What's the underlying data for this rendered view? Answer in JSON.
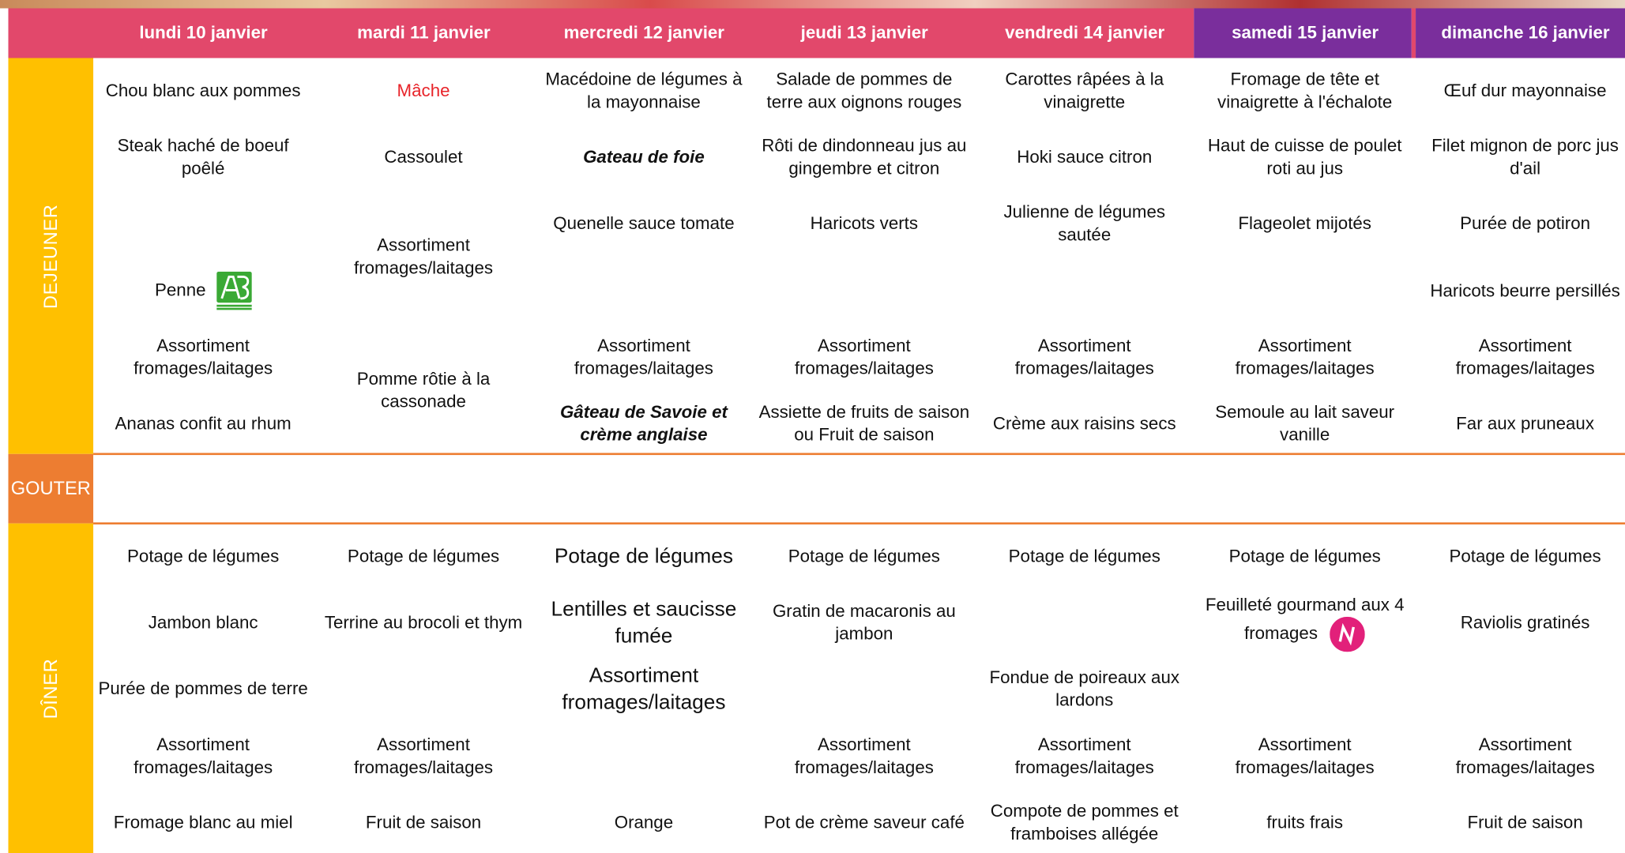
{
  "sections": {
    "dejeuner": "DEJEUNER",
    "gouter": "GOUTER",
    "diner": "DÎNER"
  },
  "days": [
    {
      "name": "lundi 10 janvier",
      "dejeuner": [
        "Chou blanc aux pommes",
        "Steak haché de boeuf poêlé",
        null,
        "Penne",
        "Assortiment fromages/laitages",
        "Ananas confit au rhum"
      ],
      "diner": [
        "Potage de légumes",
        "Jambon blanc",
        "Purée de pommes de terre",
        "Assortiment fromages/laitages",
        "Fromage blanc au miel"
      ]
    },
    {
      "name": "mardi 11 janvier",
      "dejeuner": [
        "Mâche",
        "Cassoulet",
        "Assortiment fromages/laitages",
        null,
        "Pomme rôtie à la cassonade",
        null
      ],
      "diner": [
        "Potage de légumes",
        "Terrine au brocoli et thym",
        null,
        "Assortiment fromages/laitages",
        "Fruit de saison"
      ]
    },
    {
      "name": "mercredi 12 janvier",
      "dejeuner": [
        "Macédoine de légumes à la mayonnaise",
        "Gateau de foie",
        "Quenelle sauce tomate",
        null,
        "Assortiment fromages/laitages",
        "Gâteau de Savoie et crème anglaise"
      ],
      "diner": [
        "Potage de légumes",
        "Lentilles et saucisse fumée",
        "Assortiment fromages/laitages",
        null,
        "Orange"
      ]
    },
    {
      "name": "jeudi 13 janvier",
      "dejeuner": [
        "Salade de pommes de terre aux oignons rouges",
        "Rôti de dindonneau jus au gingembre et citron",
        "Haricots verts",
        null,
        "Assortiment fromages/laitages",
        "Assiette de fruits de saison ou Fruit de saison"
      ],
      "diner": [
        "Potage de légumes",
        "Gratin de macaronis au jambon",
        null,
        "Assortiment fromages/laitages",
        "Pot de crème saveur café"
      ]
    },
    {
      "name": "vendredi 14 janvier",
      "dejeuner": [
        "Carottes râpées à la vinaigrette",
        "Hoki sauce citron",
        "Julienne de légumes sautée",
        null,
        "Assortiment fromages/laitages",
        "Crème aux raisins secs"
      ],
      "diner": [
        "Potage de légumes",
        null,
        "Fondue de poireaux aux lardons",
        "Assortiment fromages/laitages",
        "Compote de pommes et framboises allégée"
      ]
    },
    {
      "name": "samedi 15 janvier",
      "dejeuner": [
        "Fromage de tête et vinaigrette à l'échalote",
        "Haut de cuisse de poulet roti au jus",
        "Flageolet mijotés",
        null,
        "Assortiment fromages/laitages",
        "Semoule au lait saveur vanille"
      ],
      "diner": [
        "Potage de légumes",
        "Feuilleté gourmand aux 4 fromages",
        null,
        "Assortiment fromages/laitages",
        "fruits frais"
      ]
    },
    {
      "name": "dimanche 16 janvier",
      "dejeuner": [
        "Œuf dur mayonnaise",
        "Filet mignon de porc jus d'ail",
        "Purée de potiron",
        "Haricots beurre persillés",
        "Assortiment fromages/laitages",
        "Far aux pruneaux"
      ],
      "diner": [
        "Potage de légumes",
        "Raviolis gratinés",
        null,
        "Assortiment fromages/laitages",
        "Fruit de saison"
      ]
    }
  ]
}
